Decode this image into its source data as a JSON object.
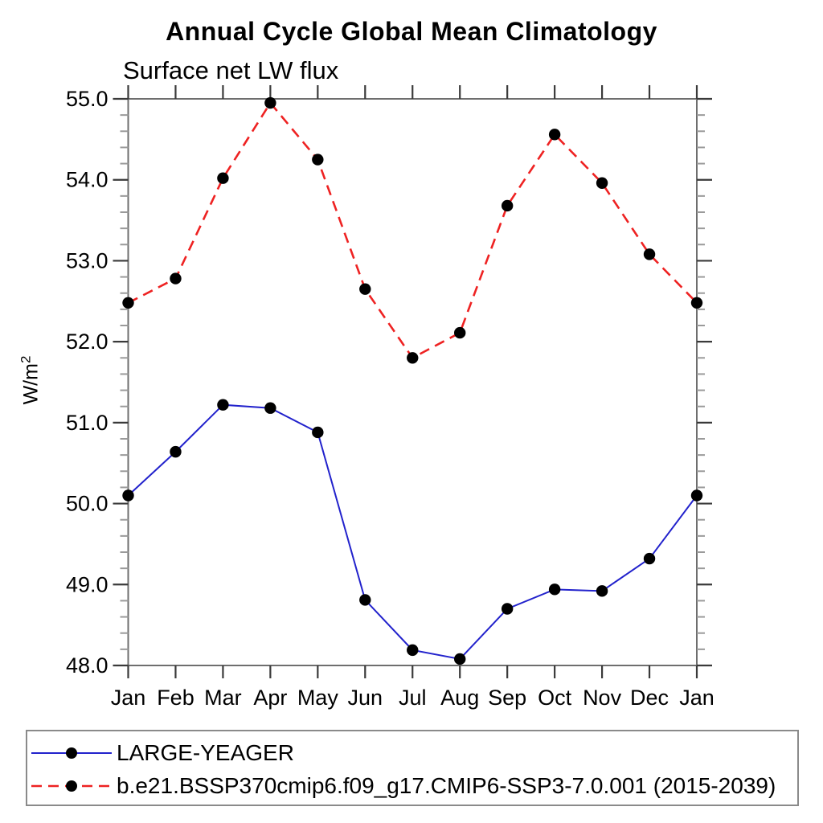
{
  "header": {
    "title": "Annual Cycle Global Mean Climatology",
    "subtitle": "Surface net LW flux"
  },
  "ylabel": {
    "base": "W/m",
    "exponent": "2"
  },
  "chart_data": {
    "type": "line",
    "title": "Annual Cycle Global Mean Climatology",
    "subtitle": "Surface net LW flux",
    "ylabel": "W/m²",
    "xlabel": "",
    "categories": [
      "Jan",
      "Feb",
      "Mar",
      "Apr",
      "May",
      "Jun",
      "Jul",
      "Aug",
      "Sep",
      "Oct",
      "Nov",
      "Dec",
      "Jan"
    ],
    "series": [
      {
        "name": "LARGE-YEAGER",
        "color": "#2222cc",
        "line_style": "solid",
        "marker": "filled-circle",
        "marker_color": "#000000",
        "values": [
          50.1,
          50.64,
          51.22,
          51.18,
          50.88,
          48.81,
          48.19,
          48.08,
          48.7,
          48.94,
          48.92,
          49.32,
          50.1
        ]
      },
      {
        "name": "b.e21.BSSP370cmip6.f09_g17.CMIP6-SSP3-7.0.001 (2015-2039)",
        "color": "#ee2222",
        "line_style": "dashed",
        "marker": "filled-circle",
        "marker_color": "#000000",
        "values": [
          52.48,
          52.78,
          54.02,
          54.95,
          54.25,
          52.65,
          51.8,
          52.11,
          53.68,
          54.56,
          53.96,
          53.08,
          52.48
        ]
      }
    ],
    "ylim": [
      48.0,
      55.0
    ],
    "ytick_step": 1.0,
    "ytick_minor_step": 0.2,
    "ytick_decimals": 1,
    "grid": false,
    "legend_position": "bottom"
  },
  "style_colors": {
    "frame": "#6e6e6e",
    "major_tick": "#3a3a3a",
    "minor_tick": "#9a9a9a",
    "text": "#000000",
    "legend_border": "#8a8a8a"
  }
}
